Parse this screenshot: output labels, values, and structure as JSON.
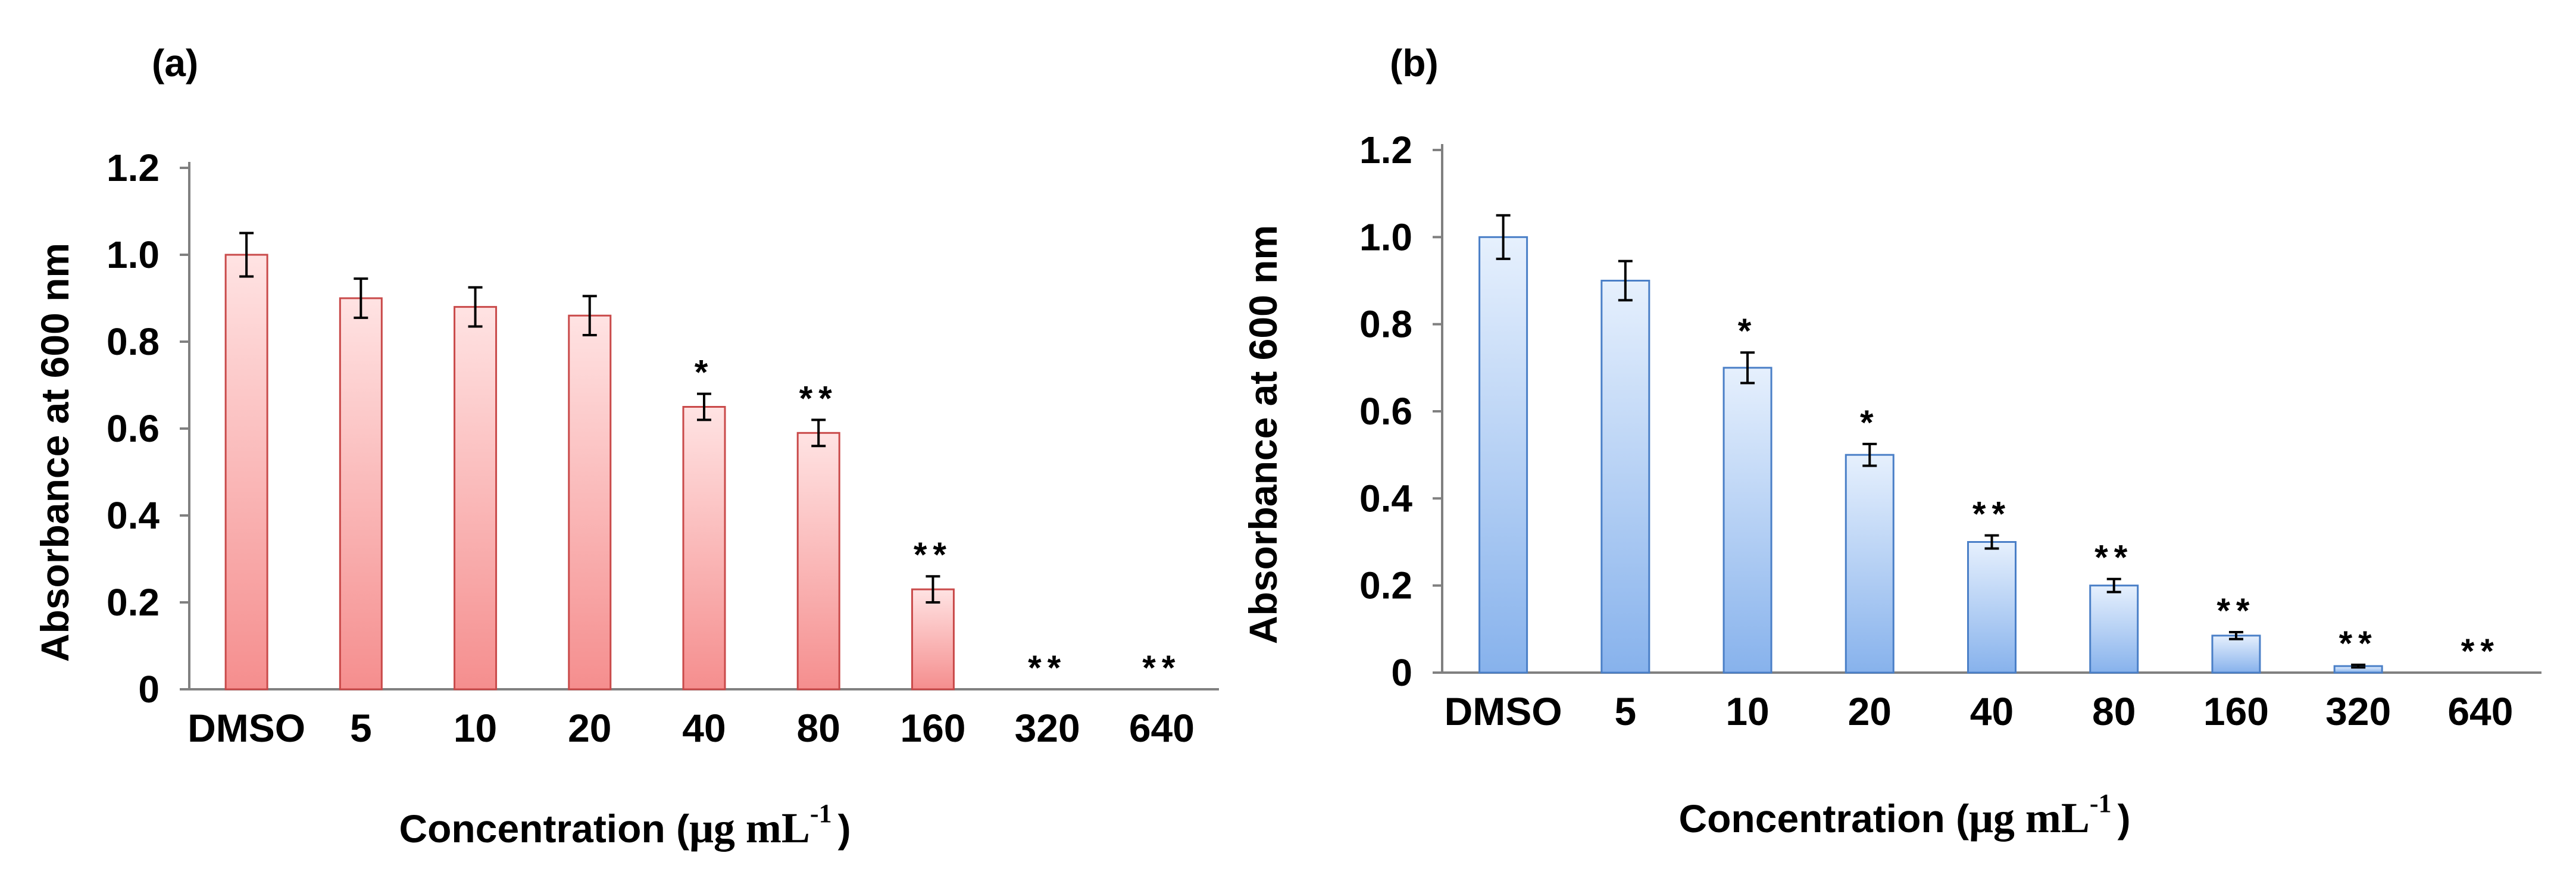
{
  "colors": {
    "panel_a_fill_top": "#ffe3e3",
    "panel_a_fill_bottom": "#f58e8e",
    "panel_a_stroke": "#c94a4a",
    "panel_b_fill_top": "#e6f0fd",
    "panel_b_fill_bottom": "#87b2ec",
    "panel_b_stroke": "#4a7fc7"
  },
  "chart_data": [
    {
      "type": "bar",
      "panel_label": "(a)",
      "title": "",
      "xlabel_text": "Concentration (",
      "xlabel_unit": "μg mL",
      "xlabel_sup": "-1",
      "xlabel_close": ")",
      "ylabel": "Absorbance at 600 nm",
      "ylim": [
        0,
        1.2
      ],
      "yticks": [
        0,
        0.2,
        0.4,
        0.6,
        0.8,
        1.0,
        1.2
      ],
      "ytick_labels": [
        "0",
        "0.2",
        "0.4",
        "0.6",
        "0.8",
        "1.0",
        "1.2"
      ],
      "categories": [
        "DMSO",
        "5",
        "10",
        "20",
        "40",
        "80",
        "160",
        "320",
        "640"
      ],
      "values": [
        1.0,
        0.9,
        0.88,
        0.86,
        0.65,
        0.59,
        0.23,
        0.0,
        0.0
      ],
      "errors": [
        0.05,
        0.045,
        0.045,
        0.045,
        0.03,
        0.03,
        0.03,
        0.0,
        0.0
      ],
      "significance": [
        "",
        "",
        "",
        "",
        "*",
        "**",
        "**",
        "**",
        "**"
      ]
    },
    {
      "type": "bar",
      "panel_label": "(b)",
      "title": "",
      "xlabel_text": "Concentration (",
      "xlabel_unit": "μg mL",
      "xlabel_sup": "-1",
      "xlabel_close": ")",
      "ylabel": "Absorbance at 600 nm",
      "ylim": [
        0,
        1.2
      ],
      "yticks": [
        0,
        0.2,
        0.4,
        0.6,
        0.8,
        1.0,
        1.2
      ],
      "ytick_labels": [
        "0",
        "0.2",
        "0.4",
        "0.6",
        "0.8",
        "1.0",
        "1.2"
      ],
      "categories": [
        "DMSO",
        "5",
        "10",
        "20",
        "40",
        "80",
        "160",
        "320",
        "640"
      ],
      "values": [
        1.0,
        0.9,
        0.7,
        0.5,
        0.3,
        0.2,
        0.085,
        0.015,
        0.0
      ],
      "errors": [
        0.05,
        0.045,
        0.035,
        0.025,
        0.015,
        0.015,
        0.008,
        0.003,
        0.0
      ],
      "significance": [
        "",
        "",
        "*",
        "*",
        "**",
        "**",
        "**",
        "**",
        "**"
      ]
    }
  ]
}
